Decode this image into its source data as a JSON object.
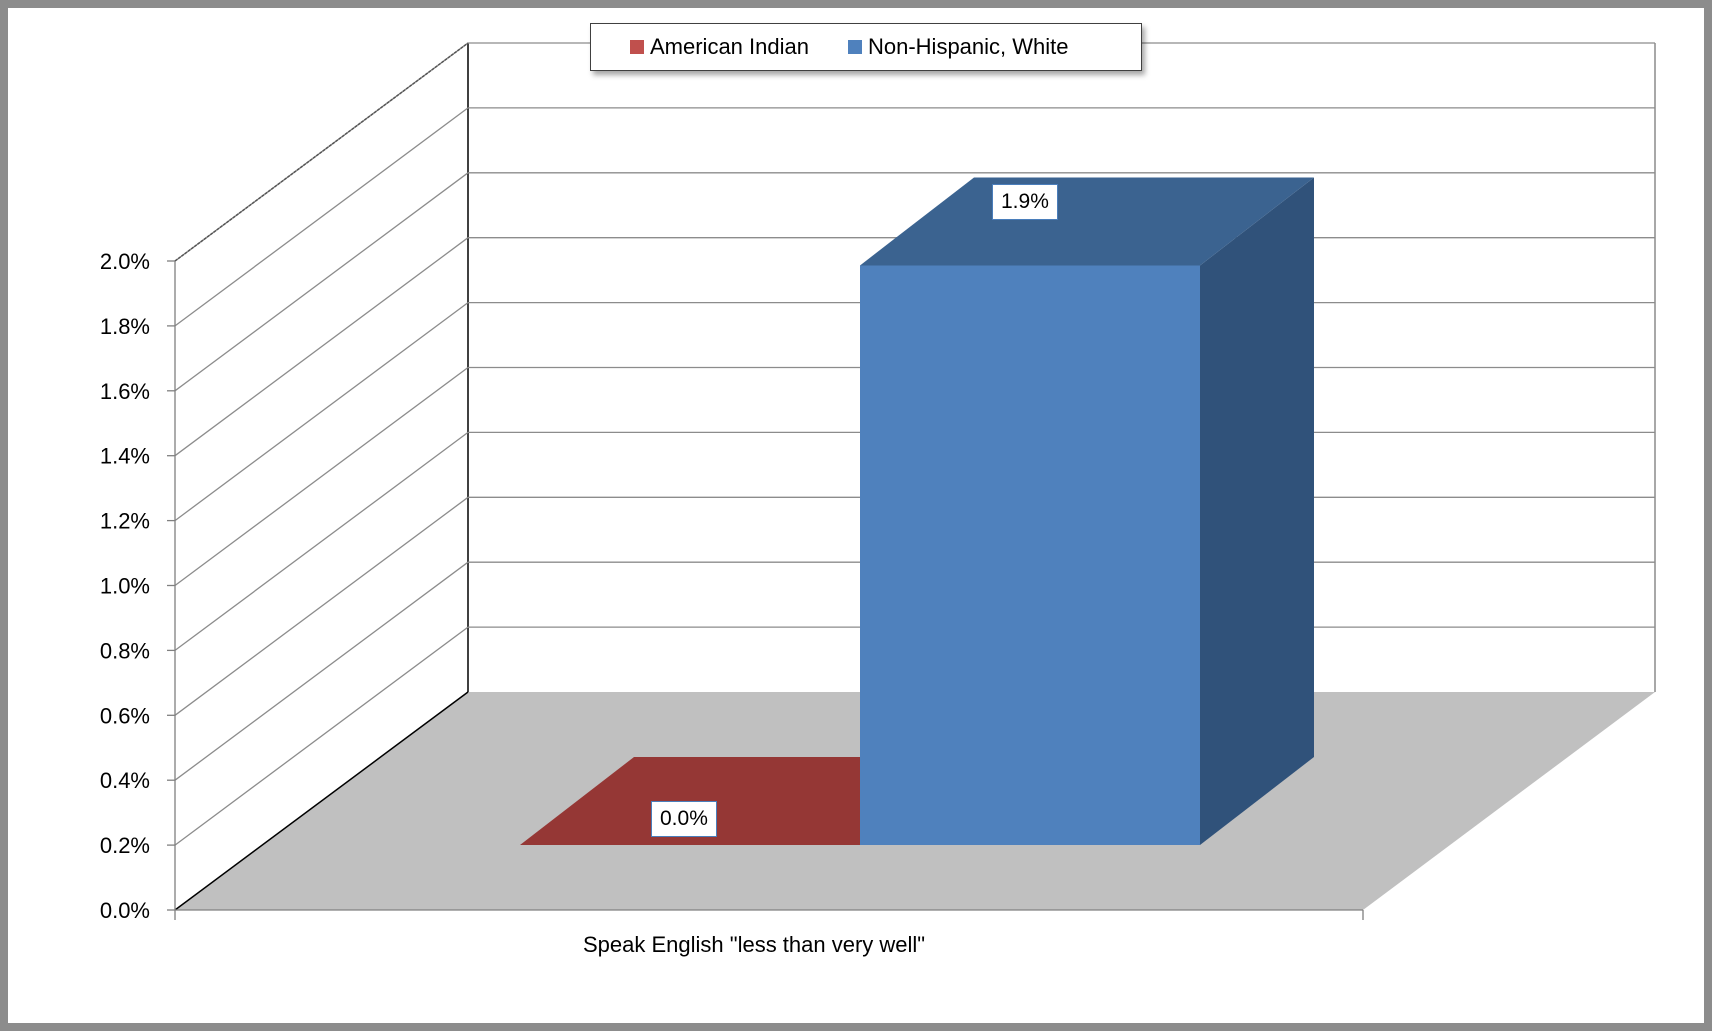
{
  "chart_data": {
    "type": "bar",
    "categories": [
      "Speak English \"less than very well\""
    ],
    "series": [
      {
        "name": "American Indian",
        "values": [
          0.0
        ],
        "color": "#953735",
        "data_label": "0.0%"
      },
      {
        "name": "Non-Hispanic, White",
        "values": [
          1.9
        ],
        "color": "#4f81bd",
        "data_label": "1.9%"
      }
    ],
    "ylim": [
      0,
      2.0
    ],
    "yticks": [
      "0.0%",
      "0.2%",
      "0.4%",
      "0.6%",
      "0.8%",
      "1.0%",
      "1.2%",
      "1.4%",
      "1.6%",
      "1.8%",
      "2.0%"
    ],
    "grid": true,
    "legend_position": "top",
    "style": "3d-clustered-column",
    "floor_color": "#c0c0c0"
  }
}
